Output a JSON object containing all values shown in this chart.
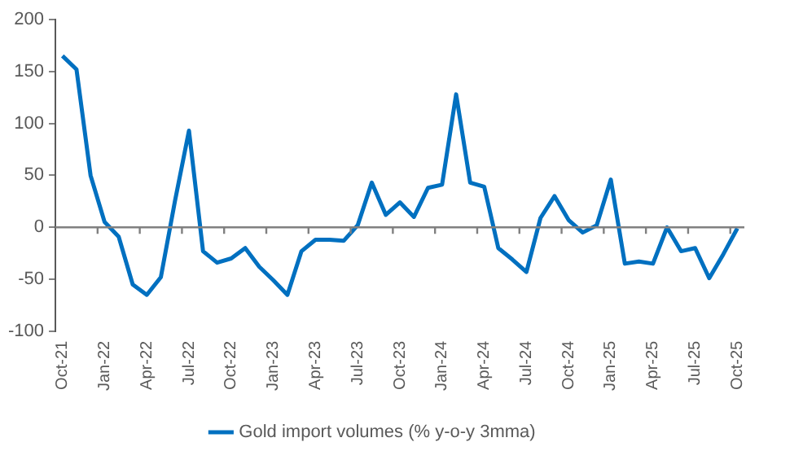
{
  "chart_data": {
    "type": "line",
    "categories": [
      "Oct-21",
      null,
      null,
      "Jan-22",
      null,
      null,
      "Apr-22",
      null,
      null,
      "Jul-22",
      null,
      null,
      "Oct-22",
      null,
      null,
      "Jan-23",
      null,
      null,
      "Apr-23",
      null,
      null,
      "Jul-23",
      null,
      null,
      "Oct-23",
      null,
      null,
      "Jan-24",
      null,
      null,
      "Apr-24",
      null,
      null,
      "Jul-24",
      null,
      null,
      "Oct-24",
      null,
      null,
      "Jan-25",
      null,
      null,
      "Apr-25",
      null,
      null,
      "Jul-25",
      null,
      null,
      "Oct-25"
    ],
    "series": [
      {
        "name": "Gold import volumes (% y-o-y 3mma)",
        "color": "#0070c0",
        "values": [
          165,
          152,
          50,
          5,
          -9,
          -55,
          -65,
          -48,
          25,
          93,
          -23,
          -34,
          -30,
          -20,
          -38,
          -51,
          -65,
          -23,
          -12,
          -12,
          -13,
          2,
          43,
          12,
          24,
          10,
          38,
          41,
          128,
          43,
          39,
          -20,
          -31,
          -43,
          9,
          30,
          7,
          -5,
          2,
          46,
          -35,
          -33,
          -35,
          0,
          -23,
          -20,
          -49,
          -26,
          -1
        ]
      }
    ],
    "ylim": [
      -100,
      200
    ],
    "yticks": [
      -100,
      -50,
      0,
      50,
      100,
      150,
      200
    ],
    "ref_lines": [
      {
        "axis": "y",
        "value": 0,
        "color": "#808080"
      }
    ],
    "grid": false,
    "legend": "bottom",
    "marker": "none",
    "line_style": "solid"
  }
}
